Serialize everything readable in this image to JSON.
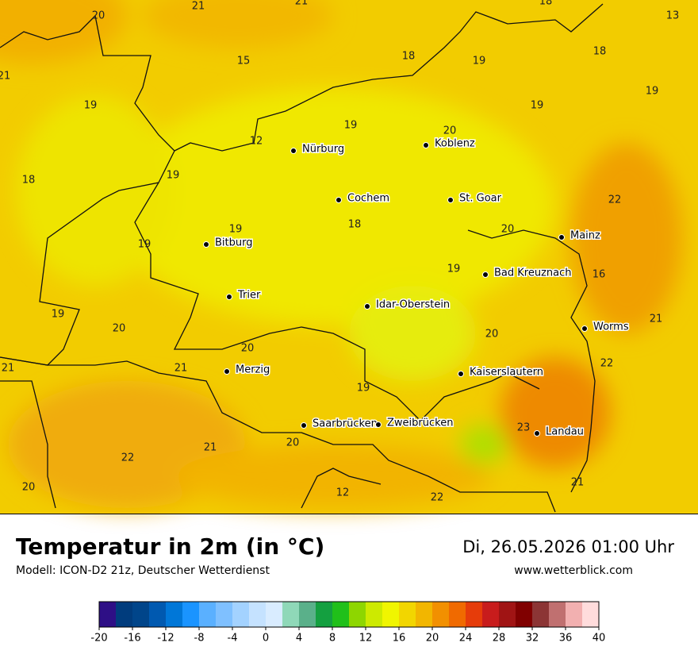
{
  "header": {
    "title": "Temperatur in 2m (in °C)",
    "subtitle": "Modell: ICON-D2 21z, Deutscher Wetterdienst",
    "datetime": "Di, 26.05.2026 01:00 Uhr",
    "website": "www.wetterblick.com"
  },
  "map": {
    "cities": [
      "Nürburg",
      "Koblenz",
      "Cochem",
      "St. Goar",
      "Bitburg",
      "Mainz",
      "Bad Kreuznach",
      "Trier",
      "Idar-Oberstein",
      "Worms",
      "Merzig",
      "Kaiserslautern",
      "Saarbrücken",
      "Zweibrücken",
      "Landau"
    ],
    "temperatures": [
      20,
      21,
      21,
      18,
      13,
      15,
      18,
      19,
      18,
      21,
      19,
      19,
      19,
      19,
      20,
      12,
      18,
      19,
      22,
      18,
      20,
      19,
      19,
      19,
      16,
      19,
      20,
      20,
      21,
      20,
      21,
      21,
      22,
      19,
      23,
      20,
      21,
      22,
      20,
      12,
      22,
      21
    ]
  },
  "colorbar": {
    "range": [
      -20,
      40
    ],
    "ticks": [
      -20,
      -16,
      -12,
      -8,
      -4,
      0,
      4,
      8,
      12,
      16,
      20,
      24,
      28,
      32,
      36,
      40
    ],
    "colors": [
      "#2e0f86",
      "#003c7d",
      "#00458a",
      "#0059b0",
      "#0077d8",
      "#1a94ff",
      "#5ab0ff",
      "#7fc0ff",
      "#a3d2ff",
      "#c5e2ff",
      "#d9ecff",
      "#8fd8b8",
      "#5ab08a",
      "#14a040",
      "#20c01a",
      "#8ed600",
      "#cdea00",
      "#f0f500",
      "#f2d600",
      "#f2b600",
      "#f29000",
      "#f06a00",
      "#e63c0a",
      "#c81c1c",
      "#a01414",
      "#800000",
      "#8c3535",
      "#c07070",
      "#f2b0b0",
      "#ffdcdc"
    ]
  }
}
